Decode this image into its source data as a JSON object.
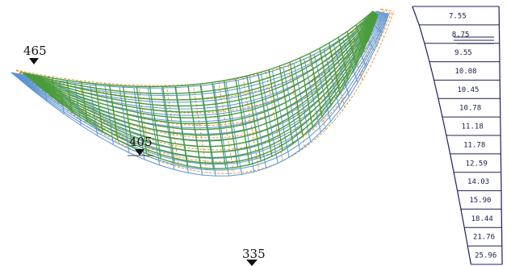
{
  "elevation_markers": [
    {
      "label": "465"
    },
    {
      "label": "405"
    },
    {
      "label": "335"
    }
  ],
  "thickness_table": {
    "values": [
      "7.55",
      "8.75",
      "9.55",
      "10.08",
      "10.45",
      "10.78",
      "11.18",
      "11.78",
      "12.59",
      "14.03",
      "15.90",
      "18.44",
      "21.76",
      "25.96"
    ]
  },
  "colors": {
    "deformed_mesh": "#4a9c3a",
    "original_mesh": "#5a95d6",
    "hidden_lines": "#e38a2c",
    "table_lines": "#1f1f5c",
    "markers": "#111111"
  }
}
